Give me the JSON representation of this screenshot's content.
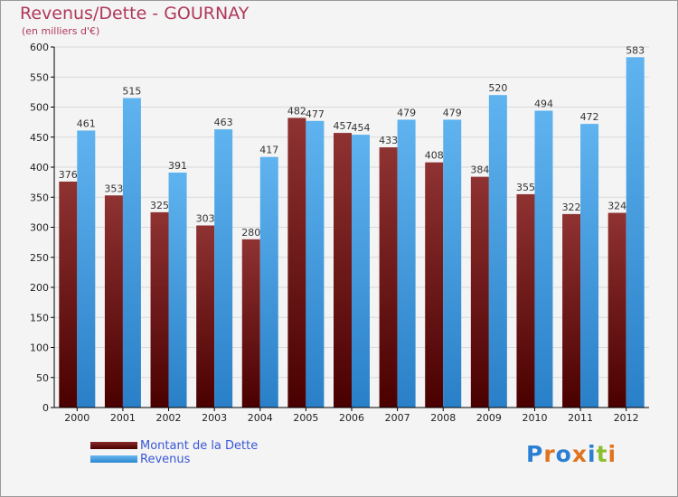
{
  "title": "Revenus/Dette - GOURNAY",
  "subtitle": "(en milliers d'€)",
  "legend": {
    "debt_label": "Montant de la Dette",
    "revenue_label": "Revenus"
  },
  "logo": {
    "text": "Proxiti",
    "colors": [
      "#2a7fd4",
      "#e0741e",
      "#2a7fd4",
      "#e0741e",
      "#2a7fd4",
      "#8bbf30",
      "#e0741e"
    ]
  },
  "colors": {
    "debt": "#7a2020",
    "revenue": "#4aa3e6",
    "grid": "#d9d9d9",
    "axis": "#000000"
  },
  "chart_data": {
    "type": "bar",
    "title": "Revenus/Dette - GOURNAY",
    "ylabel": "(en milliers d'€)",
    "xlabel": "",
    "ylim": [
      0,
      600
    ],
    "yticks": [
      0,
      50,
      100,
      150,
      200,
      250,
      300,
      350,
      400,
      450,
      500,
      550,
      600
    ],
    "categories": [
      "2000",
      "2001",
      "2002",
      "2003",
      "2004",
      "2005",
      "2006",
      "2007",
      "2008",
      "2009",
      "2010",
      "2011",
      "2012"
    ],
    "series": [
      {
        "name": "Montant de la Dette",
        "values": [
          376,
          353,
          325,
          303,
          280,
          482,
          457,
          433,
          408,
          384,
          355,
          322,
          324
        ]
      },
      {
        "name": "Revenus",
        "values": [
          461,
          515,
          391,
          463,
          417,
          477,
          454,
          479,
          479,
          520,
          494,
          472,
          583
        ]
      }
    ],
    "legend_position": "bottom-left",
    "grid": true
  }
}
